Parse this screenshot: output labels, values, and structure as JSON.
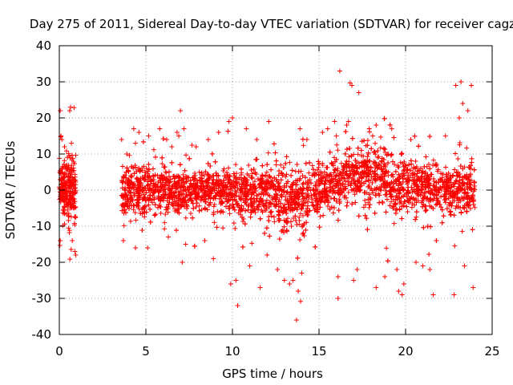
{
  "chart_data": {
    "type": "scatter",
    "title": "Day 275 of 2011, Sidereal Day-to-day VTEC variation (SDTVAR) for receiver cagz",
    "xlabel": "GPS time / hours",
    "ylabel": "SDTVAR / TECUs",
    "xlim": [
      0,
      25
    ],
    "ylim": [
      -40,
      40
    ],
    "xticks": [
      0,
      5,
      10,
      15,
      20,
      25
    ],
    "yticks": [
      -40,
      -30,
      -20,
      -10,
      0,
      10,
      20,
      30,
      40
    ],
    "xtick_labels": [
      "0",
      "5",
      "10",
      "15",
      "20",
      "25"
    ],
    "ytick_labels": [
      "-40",
      "-30",
      "-20",
      "-10",
      "0",
      "10",
      "20",
      "30",
      "40"
    ],
    "grid": true,
    "marker": "+",
    "color": "#ff0000",
    "series": [
      {
        "name": "SDTVAR",
        "band_envelope": {
          "x": [
            0.0,
            0.5,
            1.0,
            3.6,
            4.5,
            6.0,
            7.0,
            8.0,
            9.0,
            10.0,
            11.0,
            12.0,
            13.0,
            13.6,
            14.5,
            15.5,
            16.5,
            17.5,
            18.5,
            19.5,
            20.5,
            21.5,
            22.5,
            23.0,
            24.0
          ],
          "typical_low": [
            -7,
            -7,
            -7,
            -5,
            -6,
            -6,
            -5,
            -5,
            -5,
            -6,
            -7,
            -6,
            -10,
            -12,
            -8,
            -4,
            -4,
            -3,
            -3,
            -6,
            -5,
            -5,
            -6,
            -6,
            -6
          ],
          "typical_high": [
            7,
            7,
            7,
            5,
            6,
            6,
            5,
            5,
            5,
            5,
            5,
            6,
            7,
            5,
            6,
            7,
            10,
            12,
            12,
            9,
            7,
            6,
            7,
            7,
            7
          ]
        },
        "outliers": [
          {
            "x": 0.05,
            "y": 22
          },
          {
            "x": 0.1,
            "y": 15
          },
          {
            "x": 0.15,
            "y": 14
          },
          {
            "x": 0.3,
            "y": 12
          },
          {
            "x": 0.6,
            "y": 22
          },
          {
            "x": 0.65,
            "y": 23
          },
          {
            "x": 0.7,
            "y": 13
          },
          {
            "x": 0.75,
            "y": -14
          },
          {
            "x": 0.9,
            "y": -17
          },
          {
            "x": 0.95,
            "y": -18
          },
          {
            "x": 0.05,
            "y": -14
          },
          {
            "x": 3.6,
            "y": 14
          },
          {
            "x": 3.7,
            "y": -14
          },
          {
            "x": 3.9,
            "y": 10
          },
          {
            "x": 4.3,
            "y": 17
          },
          {
            "x": 4.4,
            "y": 13
          },
          {
            "x": 4.4,
            "y": -16
          },
          {
            "x": 4.6,
            "y": 16
          },
          {
            "x": 5.1,
            "y": -16
          },
          {
            "x": 5.8,
            "y": 17
          },
          {
            "x": 6.2,
            "y": 14
          },
          {
            "x": 6.3,
            "y": -13
          },
          {
            "x": 6.5,
            "y": 12
          },
          {
            "x": 6.8,
            "y": 16
          },
          {
            "x": 6.9,
            "y": 15
          },
          {
            "x": 7.0,
            "y": 22
          },
          {
            "x": 7.2,
            "y": 17
          },
          {
            "x": 7.1,
            "y": -20
          },
          {
            "x": 7.3,
            "y": -15
          },
          {
            "x": 7.9,
            "y": 12
          },
          {
            "x": 8.4,
            "y": -14
          },
          {
            "x": 8.6,
            "y": 14
          },
          {
            "x": 8.9,
            "y": -19
          },
          {
            "x": 9.2,
            "y": 16
          },
          {
            "x": 9.8,
            "y": 19
          },
          {
            "x": 10.0,
            "y": 20
          },
          {
            "x": 9.9,
            "y": -26
          },
          {
            "x": 10.3,
            "y": -32
          },
          {
            "x": 10.2,
            "y": -25
          },
          {
            "x": 10.8,
            "y": 17
          },
          {
            "x": 11.0,
            "y": -21
          },
          {
            "x": 11.4,
            "y": 14
          },
          {
            "x": 11.6,
            "y": -27
          },
          {
            "x": 12.0,
            "y": -18
          },
          {
            "x": 12.1,
            "y": 19
          },
          {
            "x": 12.6,
            "y": -22
          },
          {
            "x": 13.0,
            "y": -25
          },
          {
            "x": 13.3,
            "y": -26
          },
          {
            "x": 13.5,
            "y": -25
          },
          {
            "x": 13.7,
            "y": -36
          },
          {
            "x": 13.8,
            "y": -28
          },
          {
            "x": 13.9,
            "y": 17
          },
          {
            "x": 14.0,
            "y": -23
          },
          {
            "x": 14.3,
            "y": 14
          },
          {
            "x": 15.2,
            "y": 16
          },
          {
            "x": 15.5,
            "y": 17
          },
          {
            "x": 15.9,
            "y": 19
          },
          {
            "x": 16.0,
            "y": 15
          },
          {
            "x": 16.1,
            "y": -24
          },
          {
            "x": 16.2,
            "y": 33
          },
          {
            "x": 16.1,
            "y": -30
          },
          {
            "x": 16.6,
            "y": 18
          },
          {
            "x": 16.7,
            "y": 19
          },
          {
            "x": 16.9,
            "y": 29
          },
          {
            "x": 17.0,
            "y": -25
          },
          {
            "x": 17.2,
            "y": -22
          },
          {
            "x": 17.3,
            "y": 27
          },
          {
            "x": 17.9,
            "y": 17
          },
          {
            "x": 18.1,
            "y": 15
          },
          {
            "x": 18.3,
            "y": 18
          },
          {
            "x": 18.3,
            "y": -27
          },
          {
            "x": 18.8,
            "y": -24
          },
          {
            "x": 19.2,
            "y": 17
          },
          {
            "x": 19.5,
            "y": -22
          },
          {
            "x": 19.6,
            "y": -28
          },
          {
            "x": 19.8,
            "y": -29
          },
          {
            "x": 19.9,
            "y": -26
          },
          {
            "x": 20.3,
            "y": 14
          },
          {
            "x": 20.6,
            "y": -20
          },
          {
            "x": 21.0,
            "y": -21
          },
          {
            "x": 21.4,
            "y": -22
          },
          {
            "x": 21.6,
            "y": -29
          },
          {
            "x": 22.3,
            "y": 15
          },
          {
            "x": 22.8,
            "y": -29
          },
          {
            "x": 22.9,
            "y": 29
          },
          {
            "x": 23.1,
            "y": 20
          },
          {
            "x": 23.2,
            "y": 30
          },
          {
            "x": 23.3,
            "y": 24
          },
          {
            "x": 23.4,
            "y": -21
          },
          {
            "x": 23.6,
            "y": 22
          },
          {
            "x": 23.8,
            "y": 29
          },
          {
            "x": 23.9,
            "y": -27
          }
        ]
      }
    ]
  }
}
